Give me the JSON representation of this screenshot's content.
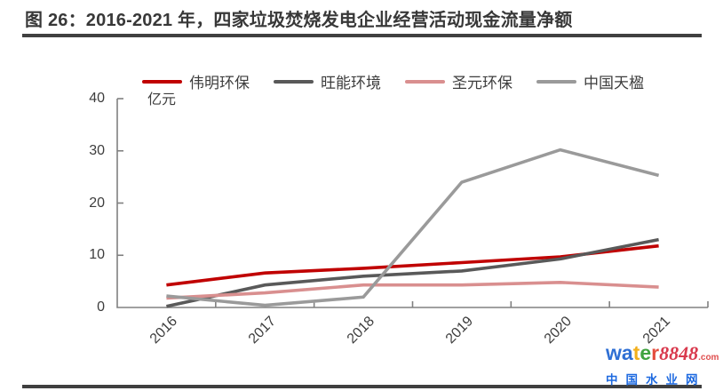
{
  "header": {
    "title": "图 26：2016-2021 年，四家垃圾焚烧发电企业经营活动现金流量净额"
  },
  "chart_data": {
    "type": "line",
    "title": "图 26：2016-2021 年，四家垃圾焚烧发电企业经营活动现金流量净额",
    "unit_label": "亿元",
    "xlabel": "",
    "ylabel": "亿元",
    "categories": [
      "2016",
      "2017",
      "2018",
      "2019",
      "2020",
      "2021"
    ],
    "series": [
      {
        "name": "伟明环保",
        "color": "#c00000",
        "values": [
          4.3,
          6.6,
          7.5,
          8.6,
          9.7,
          11.8
        ]
      },
      {
        "name": "旺能环境",
        "color": "#595959",
        "values": [
          0.2,
          4.3,
          6.0,
          7.0,
          9.3,
          13.0
        ]
      },
      {
        "name": "圣元环保",
        "color": "#d98f8f",
        "values": [
          1.8,
          2.8,
          4.3,
          4.3,
          4.8,
          3.9
        ]
      },
      {
        "name": "中国天楹",
        "color": "#9a9a9a",
        "values": [
          2.2,
          0.4,
          2.0,
          24.0,
          30.2,
          25.3
        ]
      }
    ],
    "yticks": [
      0,
      10,
      20,
      30,
      40
    ],
    "ylim": [
      0,
      40
    ],
    "legend_position": "top",
    "grid": false,
    "axis_color": "#808080"
  },
  "watermark": {
    "letters": [
      "w",
      "a",
      "t",
      "e",
      "r"
    ],
    "letter_colors": [
      "#2e6fd4",
      "#2e6fd4",
      "#f2b01e",
      "#3fa33f",
      "#e44d3d"
    ],
    "numbers": "8848",
    "numbers_color": "#d93a4e",
    "tld": ".com",
    "tld_color": "#e05050",
    "site_name": "中国水业网",
    "site_color": "#1e6ae0"
  }
}
